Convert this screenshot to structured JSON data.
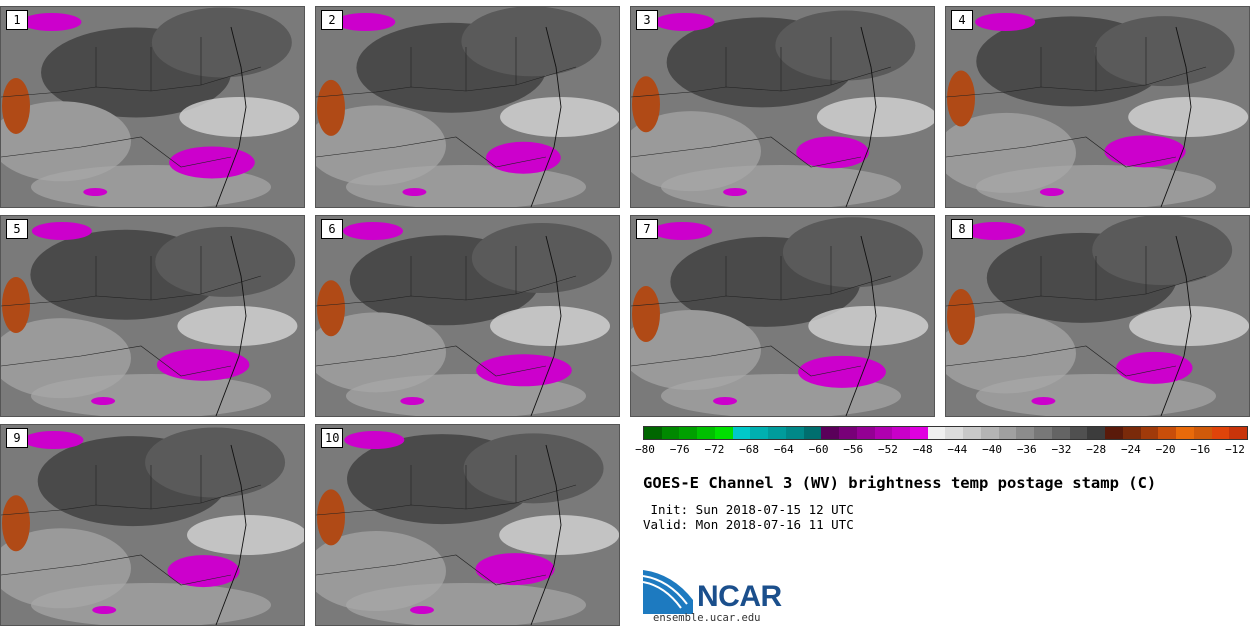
{
  "panels": [
    {
      "label": "1"
    },
    {
      "label": "2"
    },
    {
      "label": "3"
    },
    {
      "label": "4"
    },
    {
      "label": "5"
    },
    {
      "label": "6"
    },
    {
      "label": "7"
    },
    {
      "label": "8"
    },
    {
      "label": "9"
    },
    {
      "label": "10"
    }
  ],
  "colorbar": {
    "colors": [
      "#006600",
      "#008800",
      "#00a000",
      "#00c000",
      "#00e000",
      "#00c8c8",
      "#00b0b0",
      "#009c9c",
      "#008888",
      "#006e6e",
      "#5a005a",
      "#780078",
      "#940094",
      "#b000b0",
      "#c800c8",
      "#e000e0",
      "#f0f0f0",
      "#dcdcdc",
      "#c8c8c8",
      "#b4b4b4",
      "#a0a0a0",
      "#8c8c8c",
      "#787878",
      "#646464",
      "#505050",
      "#3c3c3c",
      "#5a1a0a",
      "#7a2a0a",
      "#a03a0a",
      "#c84e0a",
      "#e86a0a",
      "#d05a0a",
      "#e0440a",
      "#c8340a"
    ],
    "ticks": [
      "−80",
      "−76",
      "−72",
      "−68",
      "−64",
      "−60",
      "−56",
      "−52",
      "−48",
      "−44",
      "−40",
      "−36",
      "−32",
      "−28",
      "−24",
      "−20",
      "−16",
      "−12"
    ]
  },
  "title": "GOES-E Channel 3 (WV) brightness temp postage stamp (C)",
  "init": " Init: Sun 2018-07-15 12 UTC",
  "valid": "Valid: Mon 2018-07-16 11 UTC",
  "logo": {
    "text": "NCAR",
    "site": "ensemble.ucar.edu"
  }
}
